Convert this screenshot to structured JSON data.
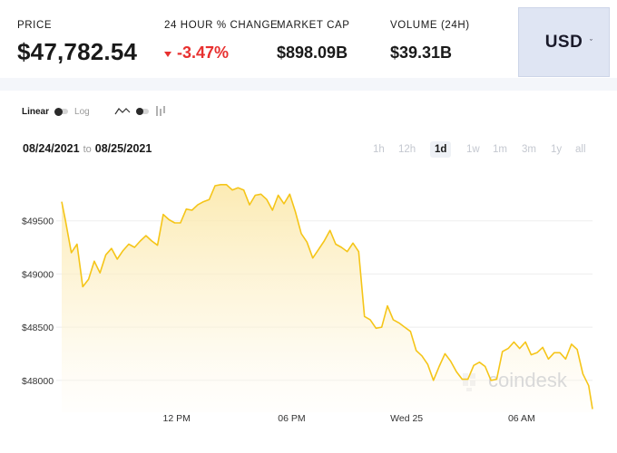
{
  "header": {
    "price": {
      "label": "PRICE",
      "currency_symbol": "$",
      "value": "47,782.54"
    },
    "change": {
      "label": "24 HOUR % CHANGE",
      "value": "-3.47%",
      "direction": "down",
      "color": "#e8302f"
    },
    "market_cap": {
      "label": "MARKET CAP",
      "value": "$898.09B"
    },
    "volume": {
      "label": "VOLUME (24H)",
      "value": "$39.31B"
    },
    "currency_select": {
      "value": "USD",
      "caret": "ˇ"
    }
  },
  "toolbar": {
    "linear_label": "Linear",
    "log_label": "Log",
    "icons": [
      "line-chart-icon",
      "chart-type-toggle",
      "candlestick-icon"
    ]
  },
  "date_range": {
    "from": "08/24/2021",
    "connector": "to",
    "to": "08/25/2021"
  },
  "time_ranges": [
    {
      "label": "1h",
      "active": false
    },
    {
      "label": "12h",
      "active": false
    },
    {
      "label": "1d",
      "active": true
    },
    {
      "label": "1w",
      "active": false
    },
    {
      "label": "1m",
      "active": false
    },
    {
      "label": "3m",
      "active": false
    },
    {
      "label": "1y",
      "active": false
    },
    {
      "label": "all",
      "active": false
    }
  ],
  "watermark": "coindesk",
  "chart_data": {
    "type": "area",
    "title": "",
    "xlabel": "",
    "ylabel": "",
    "x_tick_labels": [
      "12 PM",
      "06 PM",
      "Wed 25",
      "06 AM"
    ],
    "y_tick_labels": [
      "$49500",
      "$49000",
      "$48500",
      "$48000"
    ],
    "y_ticks": [
      49500,
      49000,
      48500,
      48000
    ],
    "ylim": [
      47700,
      50000
    ],
    "x_unit": "hours since 08/24/2021 06:00",
    "x_ticks": [
      6,
      12,
      18,
      24
    ],
    "xlim": [
      0,
      24.5
    ],
    "grid": true,
    "line_color": "#f5c518",
    "series": [
      {
        "values": [
          [
            0.0,
            49680
          ],
          [
            0.2,
            49500
          ],
          [
            0.5,
            49200
          ],
          [
            0.8,
            49280
          ],
          [
            1.1,
            48880
          ],
          [
            1.4,
            48950
          ],
          [
            1.7,
            49120
          ],
          [
            2.0,
            49010
          ],
          [
            2.3,
            49180
          ],
          [
            2.6,
            49240
          ],
          [
            2.9,
            49140
          ],
          [
            3.2,
            49220
          ],
          [
            3.5,
            49280
          ],
          [
            3.8,
            49250
          ],
          [
            4.1,
            49310
          ],
          [
            4.4,
            49360
          ],
          [
            4.7,
            49310
          ],
          [
            5.0,
            49270
          ],
          [
            5.3,
            49560
          ],
          [
            5.6,
            49510
          ],
          [
            5.9,
            49480
          ],
          [
            6.2,
            49480
          ],
          [
            6.5,
            49610
          ],
          [
            6.8,
            49600
          ],
          [
            7.1,
            49650
          ],
          [
            7.4,
            49680
          ],
          [
            7.7,
            49700
          ],
          [
            8.0,
            49830
          ],
          [
            8.3,
            49840
          ],
          [
            8.6,
            49840
          ],
          [
            8.9,
            49790
          ],
          [
            9.2,
            49810
          ],
          [
            9.5,
            49790
          ],
          [
            9.8,
            49650
          ],
          [
            10.1,
            49740
          ],
          [
            10.4,
            49750
          ],
          [
            10.7,
            49700
          ],
          [
            11.0,
            49600
          ],
          [
            11.3,
            49740
          ],
          [
            11.6,
            49660
          ],
          [
            11.9,
            49750
          ],
          [
            12.2,
            49580
          ],
          [
            12.5,
            49380
          ],
          [
            12.8,
            49300
          ],
          [
            13.1,
            49150
          ],
          [
            13.4,
            49230
          ],
          [
            13.7,
            49310
          ],
          [
            14.0,
            49410
          ],
          [
            14.3,
            49280
          ],
          [
            14.6,
            49250
          ],
          [
            14.9,
            49210
          ],
          [
            15.2,
            49290
          ],
          [
            15.5,
            49210
          ],
          [
            15.8,
            48600
          ],
          [
            16.1,
            48570
          ],
          [
            16.4,
            48490
          ],
          [
            16.7,
            48500
          ],
          [
            17.0,
            48700
          ],
          [
            17.3,
            48570
          ],
          [
            17.6,
            48540
          ],
          [
            17.9,
            48500
          ],
          [
            18.2,
            48460
          ],
          [
            18.5,
            48280
          ],
          [
            18.8,
            48230
          ],
          [
            19.1,
            48150
          ],
          [
            19.4,
            48000
          ],
          [
            19.7,
            48130
          ],
          [
            20.0,
            48250
          ],
          [
            20.3,
            48180
          ],
          [
            20.6,
            48080
          ],
          [
            20.9,
            48010
          ],
          [
            21.2,
            48010
          ],
          [
            21.5,
            48140
          ],
          [
            21.8,
            48170
          ],
          [
            22.1,
            48130
          ],
          [
            22.4,
            48000
          ],
          [
            22.7,
            48010
          ],
          [
            23.0,
            48270
          ],
          [
            23.3,
            48300
          ],
          [
            23.6,
            48360
          ],
          [
            23.9,
            48300
          ],
          [
            24.2,
            48360
          ],
          [
            24.5,
            48240
          ],
          [
            24.8,
            48260
          ],
          [
            25.1,
            48310
          ],
          [
            25.4,
            48200
          ],
          [
            25.7,
            48260
          ],
          [
            26.0,
            48260
          ],
          [
            26.3,
            48200
          ],
          [
            26.6,
            48340
          ],
          [
            26.9,
            48290
          ],
          [
            27.2,
            48060
          ],
          [
            27.5,
            47950
          ],
          [
            27.7,
            47730
          ]
        ]
      }
    ]
  }
}
